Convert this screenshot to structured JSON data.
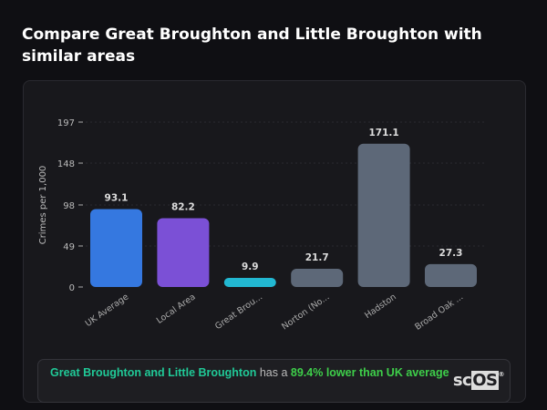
{
  "title": "Compare Great Broughton and Little Broughton with similar areas",
  "chart_data": {
    "type": "bar",
    "title": "Compare Great Broughton and Little Broughton with similar areas",
    "xlabel": "",
    "ylabel": "Crimes per 1,000",
    "ylim": [
      0,
      197
    ],
    "yticks": [
      0,
      49,
      98,
      148,
      197
    ],
    "grid": true,
    "categories": [
      "UK Average",
      "Local Area",
      "Great Brou...",
      "Norton (No...",
      "Hadston",
      "Broad Oak ..."
    ],
    "values": [
      93.1,
      82.2,
      9.9,
      21.7,
      171.1,
      27.3
    ],
    "value_labels": [
      "93.1",
      "82.2",
      "9.9",
      "21.7",
      "171.1",
      "27.3"
    ],
    "colors": [
      "#3578e0",
      "#7b50d6",
      "#22b8d2",
      "#5d6878",
      "#5d6878",
      "#5d6878"
    ]
  },
  "footer": {
    "area": "Great Broughton and Little Broughton",
    "middle": " has a ",
    "stat": "89.4% lower than UK average",
    "logo_left": "sc",
    "logo_box": "OS",
    "logo_mark": "®"
  }
}
